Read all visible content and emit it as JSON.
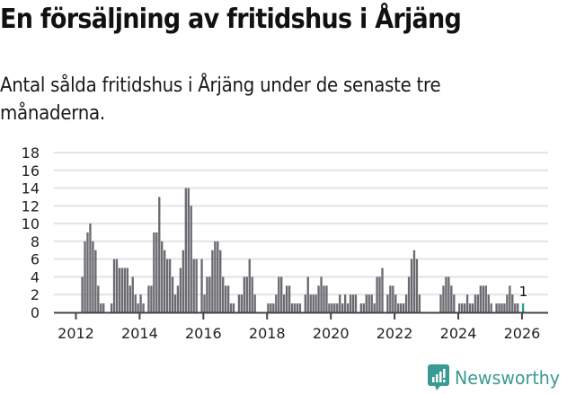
{
  "header": {
    "title": "En försäljning av fritidshus i Årjäng",
    "subtitle": "Antal sålda fritidshus i Årjäng under de senaste tre månaderna."
  },
  "logo": {
    "text": "Newsworthy",
    "color": "#3a9a94"
  },
  "colors": {
    "bar": "#6b6a70",
    "highlight": "#1aa39a",
    "grid": "#e3e3e3",
    "axis": "#444444"
  },
  "chart_data": {
    "type": "bar",
    "title": "En försäljning av fritidshus i Årjäng",
    "subtitle": "Antal sålda fritidshus i Årjäng under de senaste tre månaderna.",
    "xlabel": "",
    "ylabel": "",
    "ylim": [
      0,
      18
    ],
    "yticks": [
      0,
      2,
      4,
      6,
      8,
      10,
      12,
      14,
      16,
      18
    ],
    "xticks": [
      "2012",
      "2014",
      "2016",
      "2018",
      "2020",
      "2022",
      "2024",
      "2026"
    ],
    "grid": true,
    "start": "2012-01",
    "frequency": "monthly",
    "values": [
      0,
      0,
      4,
      8,
      9,
      10,
      8,
      7,
      3,
      1,
      1,
      0,
      0,
      1,
      6,
      6,
      5,
      5,
      5,
      5,
      3,
      4,
      2,
      1,
      2,
      1,
      0,
      3,
      3,
      9,
      9,
      13,
      8,
      7,
      6,
      6,
      4,
      2,
      3,
      5,
      7,
      14,
      14,
      12,
      6,
      6,
      0,
      6,
      2,
      4,
      4,
      7,
      8,
      8,
      7,
      4,
      3,
      3,
      1,
      1,
      0,
      2,
      2,
      4,
      4,
      6,
      4,
      2,
      0,
      0,
      0,
      0,
      1,
      1,
      1,
      2,
      4,
      4,
      2,
      3,
      3,
      1,
      1,
      1,
      1,
      0,
      2,
      4,
      2,
      2,
      2,
      3,
      4,
      3,
      3,
      1,
      1,
      1,
      1,
      2,
      1,
      2,
      1,
      2,
      2,
      2,
      0,
      1,
      1,
      2,
      2,
      2,
      1,
      4,
      4,
      5,
      0,
      2,
      3,
      3,
      2,
      1,
      1,
      1,
      2,
      4,
      6,
      7,
      6,
      2,
      0,
      0,
      0,
      0,
      0,
      0,
      0,
      2,
      3,
      4,
      4,
      3,
      2,
      0,
      1,
      1,
      1,
      2,
      1,
      1,
      2,
      2,
      3,
      3,
      3,
      2,
      1,
      0,
      1,
      1,
      1,
      1,
      2,
      3,
      2,
      1,
      1,
      0,
      1
    ],
    "highlight": {
      "index": 168,
      "label": "1",
      "value": 1
    },
    "annotations": [
      {
        "text": "1",
        "at": "latest bar"
      }
    ]
  }
}
